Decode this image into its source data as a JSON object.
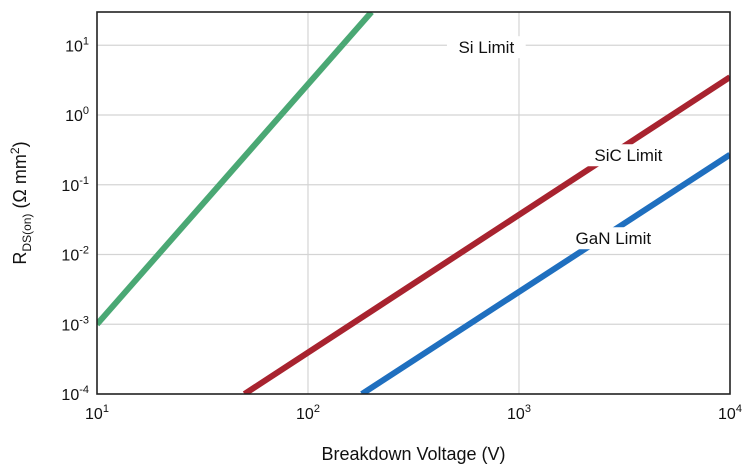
{
  "chart_data": {
    "type": "line",
    "xlabel": "Breakdown Voltage (V)",
    "ylabel": {
      "base": "R",
      "subscript": "DS(on)",
      "rest": " (Ω mm",
      "superscript": "2",
      "close": ")"
    },
    "x_scale": "log",
    "y_scale": "log",
    "xlim": [
      10,
      10000
    ],
    "ylim": [
      0.0001,
      30
    ],
    "x_ticks": [
      {
        "base": "10",
        "exp": "1",
        "value": 10
      },
      {
        "base": "10",
        "exp": "2",
        "value": 100
      },
      {
        "base": "10",
        "exp": "3",
        "value": 1000
      },
      {
        "base": "10",
        "exp": "4",
        "value": 10000
      }
    ],
    "y_ticks": [
      {
        "base": "10",
        "exp": "-4",
        "value": 0.0001
      },
      {
        "base": "10",
        "exp": "-3",
        "value": 0.001
      },
      {
        "base": "10",
        "exp": "-2",
        "value": 0.01
      },
      {
        "base": "10",
        "exp": "-1",
        "value": 0.1
      },
      {
        "base": "10",
        "exp": "0",
        "value": 1
      },
      {
        "base": "10",
        "exp": "1",
        "value": 10
      }
    ],
    "grid": true,
    "series": [
      {
        "name": "Si Limit",
        "color": "#4aa874",
        "x": [
          10,
          200
        ],
        "y": [
          0.001,
          30
        ],
        "label_at": [
          700,
          8.5
        ]
      },
      {
        "name": "SiC Limit",
        "color": "#a8232f",
        "x": [
          50,
          10000
        ],
        "y": [
          0.0001,
          3.5
        ],
        "label_at": [
          3300,
          0.24
        ]
      },
      {
        "name": "GaN Limit",
        "color": "#1f6fbf",
        "x": [
          180,
          10000
        ],
        "y": [
          0.0001,
          0.27
        ],
        "label_at": [
          2800,
          0.0155
        ]
      }
    ]
  }
}
